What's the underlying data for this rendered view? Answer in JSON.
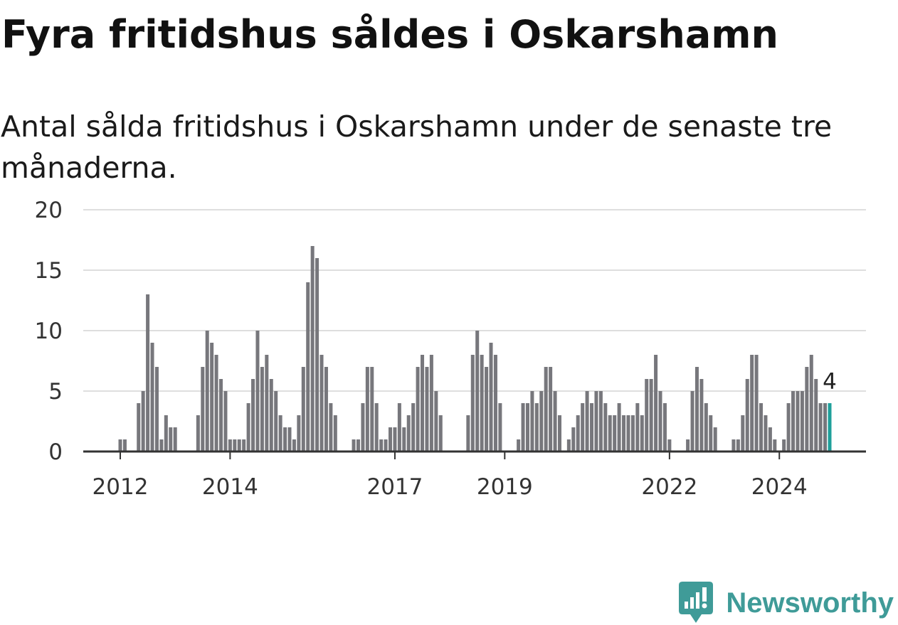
{
  "chart_data": {
    "type": "bar",
    "title": "Fyra fritidshus såldes i Oskarshamn",
    "subtitle": "Antal sålda fritidshus i Oskarshamn under de senaste tre månaderna.",
    "x": [
      "2012-01",
      "2012-02",
      "2012-03",
      "2012-04",
      "2012-05",
      "2012-06",
      "2012-07",
      "2012-08",
      "2012-09",
      "2012-10",
      "2012-11",
      "2012-12",
      "2013-01",
      "2013-02",
      "2013-03",
      "2013-04",
      "2013-05",
      "2013-06",
      "2013-07",
      "2013-08",
      "2013-09",
      "2013-10",
      "2013-11",
      "2013-12",
      "2014-01",
      "2014-02",
      "2014-03",
      "2014-04",
      "2014-05",
      "2014-06",
      "2014-07",
      "2014-08",
      "2014-09",
      "2014-10",
      "2014-11",
      "2014-12",
      "2015-01",
      "2015-02",
      "2015-03",
      "2015-04",
      "2015-05",
      "2015-06",
      "2015-07",
      "2015-08",
      "2015-09",
      "2015-10",
      "2015-11",
      "2015-12",
      "2016-01",
      "2016-02",
      "2016-03",
      "2016-04",
      "2016-05",
      "2016-06",
      "2016-07",
      "2016-08",
      "2016-09",
      "2016-10",
      "2016-11",
      "2016-12",
      "2017-01",
      "2017-02",
      "2017-03",
      "2017-04",
      "2017-05",
      "2017-06",
      "2017-07",
      "2017-08",
      "2017-09",
      "2017-10",
      "2017-11",
      "2017-12",
      "2018-01",
      "2018-02",
      "2018-03",
      "2018-04",
      "2018-05",
      "2018-06",
      "2018-07",
      "2018-08",
      "2018-09",
      "2018-10",
      "2018-11",
      "2018-12",
      "2019-01",
      "2019-02",
      "2019-03",
      "2019-04",
      "2019-05",
      "2019-06",
      "2019-07",
      "2019-08",
      "2019-09",
      "2019-10",
      "2019-11",
      "2019-12",
      "2020-01",
      "2020-02",
      "2020-03",
      "2020-04",
      "2020-05",
      "2020-06",
      "2020-07",
      "2020-08",
      "2020-09",
      "2020-10",
      "2020-11",
      "2020-12",
      "2021-01",
      "2021-02",
      "2021-03",
      "2021-04",
      "2021-05",
      "2021-06",
      "2021-07",
      "2021-08",
      "2021-09",
      "2021-10",
      "2021-11",
      "2021-12",
      "2022-01",
      "2022-02",
      "2022-03",
      "2022-04",
      "2022-05",
      "2022-06",
      "2022-07",
      "2022-08",
      "2022-09",
      "2022-10",
      "2022-11",
      "2022-12",
      "2023-01",
      "2023-02",
      "2023-03",
      "2023-04",
      "2023-05",
      "2023-06",
      "2023-07",
      "2023-08",
      "2023-09",
      "2023-10",
      "2023-11",
      "2023-12",
      "2024-01",
      "2024-02",
      "2024-03",
      "2024-04",
      "2024-05",
      "2024-06",
      "2024-07",
      "2024-08",
      "2024-09",
      "2024-10",
      "2024-11",
      "2024-12"
    ],
    "values": [
      1,
      1,
      0,
      0,
      4,
      5,
      13,
      9,
      7,
      1,
      3,
      2,
      2,
      0,
      0,
      0,
      0,
      3,
      7,
      10,
      9,
      8,
      6,
      5,
      1,
      1,
      1,
      1,
      4,
      6,
      10,
      7,
      8,
      6,
      5,
      3,
      2,
      2,
      1,
      3,
      7,
      14,
      17,
      16,
      8,
      7,
      4,
      3,
      0,
      0,
      0,
      1,
      1,
      4,
      7,
      7,
      4,
      1,
      1,
      2,
      2,
      4,
      2,
      3,
      4,
      7,
      8,
      7,
      8,
      5,
      3,
      0,
      0,
      0,
      0,
      0,
      3,
      8,
      10,
      8,
      7,
      9,
      8,
      4,
      0,
      0,
      0,
      1,
      4,
      4,
      5,
      4,
      5,
      7,
      7,
      5,
      3,
      0,
      1,
      2,
      3,
      4,
      5,
      4,
      5,
      5,
      4,
      3,
      3,
      4,
      3,
      3,
      3,
      4,
      3,
      6,
      6,
      8,
      5,
      4,
      1,
      0,
      0,
      0,
      1,
      5,
      7,
      6,
      4,
      3,
      2,
      0,
      0,
      0,
      1,
      1,
      3,
      6,
      8,
      8,
      4,
      3,
      2,
      1,
      0,
      1,
      4,
      5,
      5,
      5,
      7,
      8,
      6,
      4,
      4,
      4
    ],
    "xticks": [
      "2012",
      "2014",
      "2017",
      "2019",
      "2022",
      "2024"
    ],
    "yticks": [
      0,
      5,
      10,
      15,
      20
    ],
    "ylim": [
      0,
      20
    ],
    "grid": true,
    "highlight": {
      "x": "2024-12",
      "label": "4"
    },
    "colors": {
      "bar": "#77777c",
      "highlight": "#1fa09b",
      "grid": "#dedede",
      "axis": "#333333"
    }
  },
  "brand": {
    "name": "Newsworthy",
    "icon": "newsworthy-logo-icon",
    "color": "#3f9b98"
  }
}
